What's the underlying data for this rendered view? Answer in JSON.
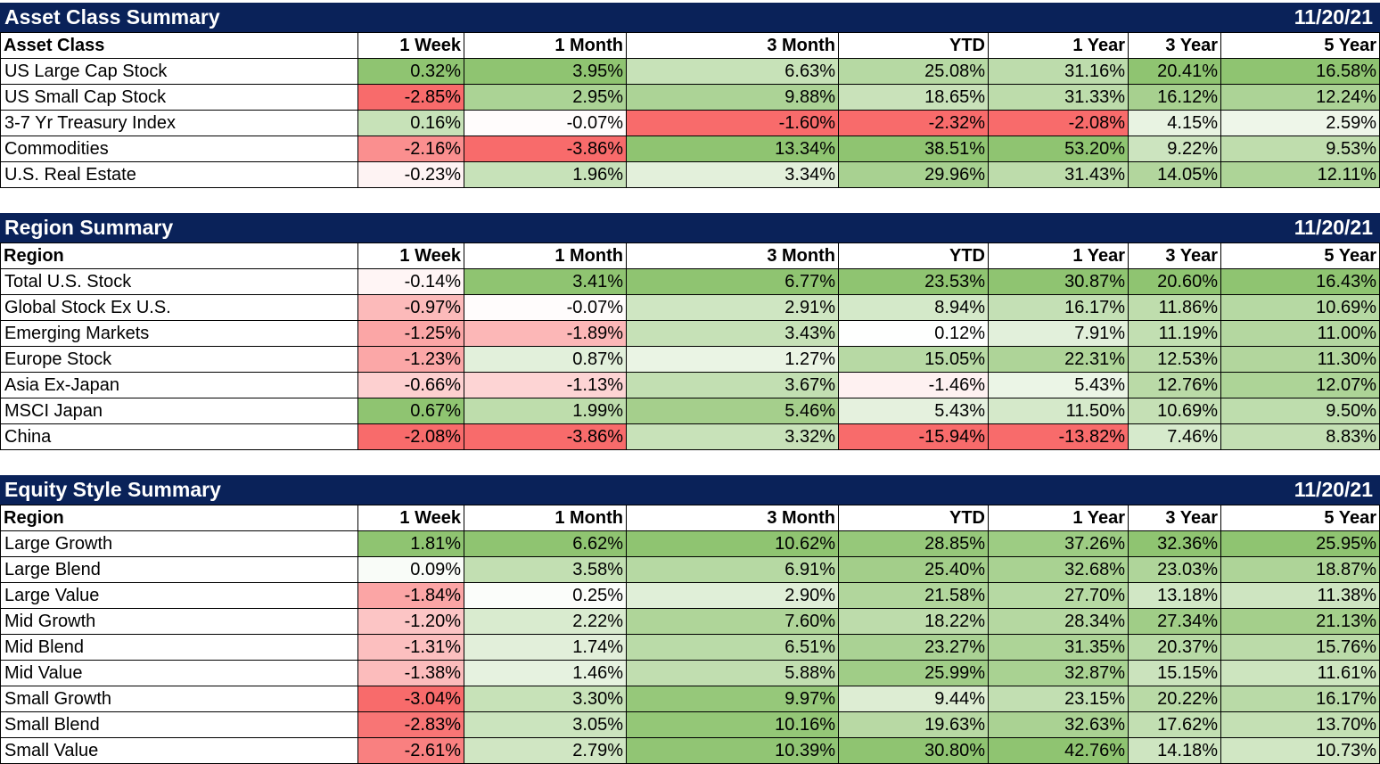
{
  "columns": [
    "1 Week",
    "1 Month",
    "3 Month",
    "YTD",
    "1 Year",
    "3 Year",
    "5 Year"
  ],
  "date": "11/20/21",
  "chart_data": [
    {
      "type": "table",
      "title": "Asset Class Summary",
      "row_header": "Asset Class",
      "rows": [
        {
          "name": "US Large Cap Stock",
          "values": [
            "0.32%",
            "3.95%",
            "6.63%",
            "25.08%",
            "31.16%",
            "20.41%",
            "16.58%"
          ]
        },
        {
          "name": "US Small Cap Stock",
          "values": [
            "-2.85%",
            "2.95%",
            "9.88%",
            "18.65%",
            "31.33%",
            "16.12%",
            "12.24%"
          ]
        },
        {
          "name": "3-7 Yr Treasury Index",
          "values": [
            "0.16%",
            "-0.07%",
            "-1.60%",
            "-2.32%",
            "-2.08%",
            "4.15%",
            "2.59%"
          ]
        },
        {
          "name": "Commodities",
          "values": [
            "-2.16%",
            "-3.86%",
            "13.34%",
            "38.51%",
            "53.20%",
            "9.22%",
            "9.53%"
          ]
        },
        {
          "name": "U.S. Real Estate",
          "values": [
            "-0.23%",
            "1.96%",
            "3.34%",
            "29.96%",
            "31.43%",
            "14.05%",
            "12.11%"
          ]
        }
      ]
    },
    {
      "type": "table",
      "title": "Region Summary",
      "row_header": "Region",
      "rows": [
        {
          "name": "Total U.S. Stock",
          "values": [
            "-0.14%",
            "3.41%",
            "6.77%",
            "23.53%",
            "30.87%",
            "20.60%",
            "16.43%"
          ]
        },
        {
          "name": "Global Stock Ex U.S.",
          "values": [
            "-0.97%",
            "-0.07%",
            "2.91%",
            "8.94%",
            "16.17%",
            "11.86%",
            "10.69%"
          ]
        },
        {
          "name": "Emerging Markets",
          "values": [
            "-1.25%",
            "-1.89%",
            "3.43%",
            "0.12%",
            "7.91%",
            "11.19%",
            "11.00%"
          ]
        },
        {
          "name": "Europe Stock",
          "values": [
            "-1.23%",
            "0.87%",
            "1.27%",
            "15.05%",
            "22.31%",
            "12.53%",
            "11.30%"
          ]
        },
        {
          "name": "Asia Ex-Japan",
          "values": [
            "-0.66%",
            "-1.13%",
            "3.67%",
            "-1.46%",
            "5.43%",
            "12.76%",
            "12.07%"
          ]
        },
        {
          "name": "MSCI Japan",
          "values": [
            "0.67%",
            "1.99%",
            "5.46%",
            "5.43%",
            "11.50%",
            "10.69%",
            "9.50%"
          ]
        },
        {
          "name": "China",
          "values": [
            "-2.08%",
            "-3.86%",
            "3.32%",
            "-15.94%",
            "-13.82%",
            "7.46%",
            "8.83%"
          ]
        }
      ]
    },
    {
      "type": "table",
      "title": "Equity Style Summary",
      "row_header": "Region",
      "rows": [
        {
          "name": "Large Growth",
          "values": [
            "1.81%",
            "6.62%",
            "10.62%",
            "28.85%",
            "37.26%",
            "32.36%",
            "25.95%"
          ]
        },
        {
          "name": "Large Blend",
          "values": [
            "0.09%",
            "3.58%",
            "6.91%",
            "25.40%",
            "32.68%",
            "23.03%",
            "18.87%"
          ]
        },
        {
          "name": "Large Value",
          "values": [
            "-1.84%",
            "0.25%",
            "2.90%",
            "21.58%",
            "27.70%",
            "13.18%",
            "11.38%"
          ]
        },
        {
          "name": "Mid Growth",
          "values": [
            "-1.20%",
            "2.22%",
            "7.60%",
            "18.22%",
            "28.34%",
            "27.34%",
            "21.13%"
          ]
        },
        {
          "name": "Mid Blend",
          "values": [
            "-1.31%",
            "1.74%",
            "6.51%",
            "23.27%",
            "31.35%",
            "20.37%",
            "15.76%"
          ]
        },
        {
          "name": "Mid Value",
          "values": [
            "-1.38%",
            "1.46%",
            "5.88%",
            "25.99%",
            "32.87%",
            "15.15%",
            "11.61%"
          ]
        },
        {
          "name": "Small Growth",
          "values": [
            "-3.04%",
            "3.30%",
            "9.97%",
            "9.44%",
            "23.15%",
            "20.22%",
            "16.17%"
          ]
        },
        {
          "name": "Small Blend",
          "values": [
            "-2.83%",
            "3.05%",
            "10.16%",
            "19.63%",
            "32.63%",
            "17.62%",
            "13.70%"
          ]
        },
        {
          "name": "Small Value",
          "values": [
            "-2.61%",
            "2.79%",
            "10.39%",
            "30.80%",
            "42.76%",
            "14.18%",
            "10.73%"
          ]
        }
      ]
    }
  ],
  "colors": {
    "header_bg": "#0a2259",
    "header_text": "#ffffff",
    "positive_max": "#8fc471",
    "negative_max": "#f86b6b",
    "neutral": "#ffffff"
  }
}
